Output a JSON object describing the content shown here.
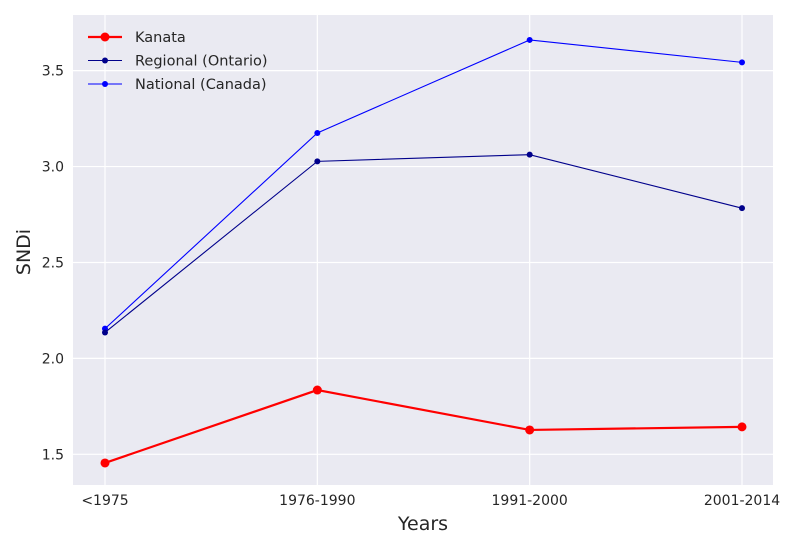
{
  "chart_data": {
    "type": "line",
    "title": "",
    "xlabel": "Years",
    "ylabel": "SNDi",
    "categories": [
      "<1975",
      "1976-1990",
      "1991-2000",
      "2001-2014"
    ],
    "ylim": [
      1.34,
      3.79
    ],
    "yticks": [
      "1.5",
      "2.0",
      "2.5",
      "3.0",
      "3.5"
    ],
    "grid": true,
    "legend_position": "top-left",
    "series": [
      {
        "name": "Kanata",
        "color": "#ff0000",
        "values": [
          1.455,
          1.835,
          1.627,
          1.643
        ]
      },
      {
        "name": "Regional (Ontario)",
        "color": "#00008b",
        "values": [
          2.135,
          3.027,
          3.062,
          2.783
        ]
      },
      {
        "name": "National (Canada)",
        "color": "#0000ff",
        "values": [
          2.155,
          3.175,
          3.66,
          3.543
        ]
      }
    ]
  }
}
